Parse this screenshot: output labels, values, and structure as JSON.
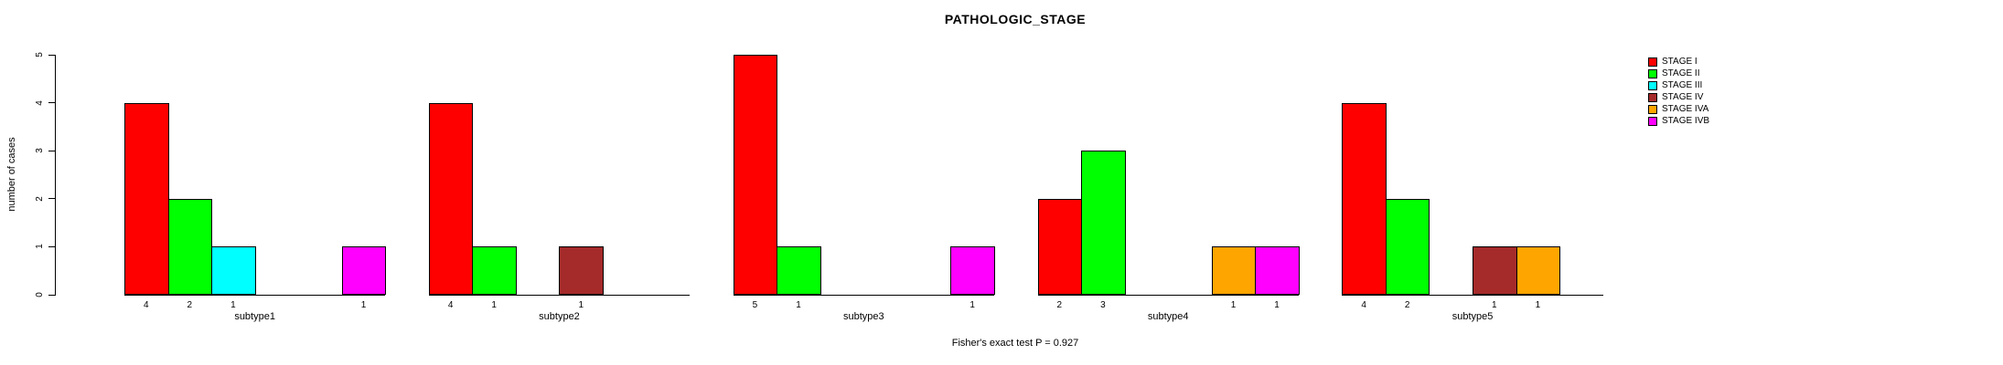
{
  "chart_data": {
    "type": "bar",
    "title": "PATHOLOGIC_STAGE",
    "ylabel": "number of cases",
    "footer": "Fisher's exact test P = 0.927",
    "ylim": [
      0,
      5
    ],
    "yticks": [
      0,
      1,
      2,
      3,
      4,
      5
    ],
    "grid": false,
    "legend_position": "right",
    "categories": [
      "subtype1",
      "subtype2",
      "subtype3",
      "subtype4",
      "subtype5"
    ],
    "series": [
      {
        "name": "STAGE I",
        "color": "#FF0000",
        "values": [
          4,
          4,
          5,
          2,
          4
        ]
      },
      {
        "name": "STAGE II",
        "color": "#00FF00",
        "values": [
          2,
          1,
          1,
          3,
          2
        ]
      },
      {
        "name": "STAGE III",
        "color": "#00FFFF",
        "values": [
          1,
          0,
          0,
          0,
          0
        ]
      },
      {
        "name": "STAGE IV",
        "color": "#A52A2A",
        "values": [
          0,
          1,
          0,
          0,
          1
        ]
      },
      {
        "name": "STAGE IVA",
        "color": "#FFA500",
        "values": [
          0,
          0,
          0,
          1,
          1
        ]
      },
      {
        "name": "STAGE IVB",
        "color": "#FF00FF",
        "values": [
          1,
          0,
          1,
          1,
          0
        ]
      }
    ],
    "bar_value_labels": "nonzero values shown under each bar"
  }
}
